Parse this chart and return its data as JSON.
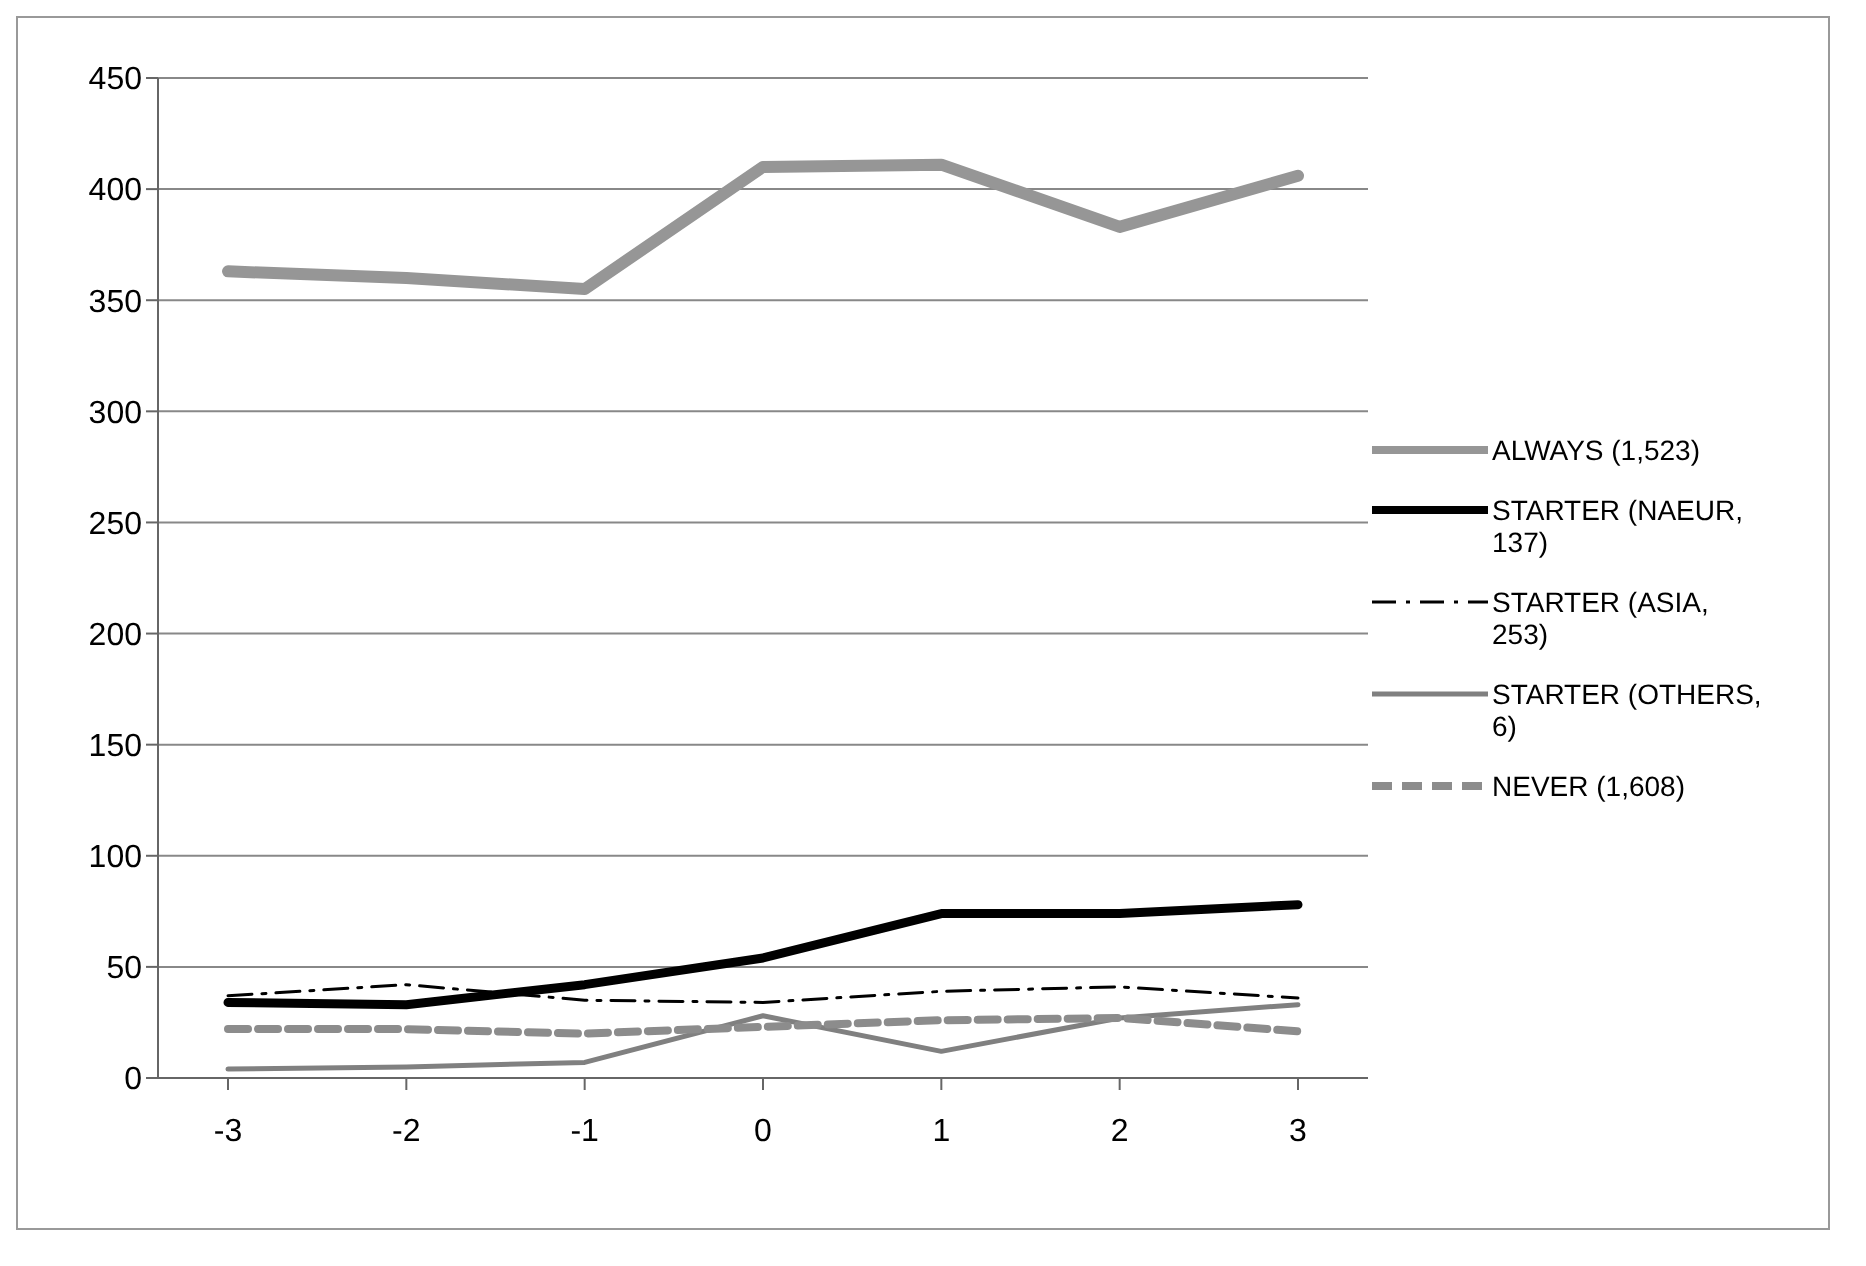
{
  "chart_data": {
    "type": "line",
    "categories": [
      "-3",
      "-2",
      "-1",
      "0",
      "1",
      "2",
      "3"
    ],
    "ylim": [
      0,
      450
    ],
    "yticks": [
      0,
      50,
      100,
      150,
      200,
      250,
      300,
      350,
      400,
      450
    ],
    "grid": "y",
    "legend": "right",
    "marker": "none",
    "series": [
      {
        "name": "ALWAYS (1,523)",
        "color": "#969696",
        "line_style": "solid",
        "values": [
          363,
          360,
          355,
          410,
          411,
          383,
          406
        ]
      },
      {
        "name": "STARTER (NAEUR, 137)",
        "color": "#000000",
        "line_style": "solid",
        "values": [
          34,
          33,
          42,
          54,
          74,
          74,
          78
        ]
      },
      {
        "name": "STARTER (ASIA, 253)",
        "color": "#000000",
        "line_style": "dashdot",
        "values": [
          37,
          42,
          35,
          34,
          39,
          41,
          36
        ]
      },
      {
        "name": "STARTER (OTHERS, 6)",
        "color": "#808080",
        "line_style": "solid",
        "values": [
          4,
          5,
          7,
          28,
          12,
          27,
          33
        ]
      },
      {
        "name": "NEVER (1,608)",
        "color": "#8c8c8c",
        "line_style": "dashed",
        "values": [
          22,
          22,
          20,
          23,
          26,
          27,
          21
        ]
      }
    ]
  }
}
